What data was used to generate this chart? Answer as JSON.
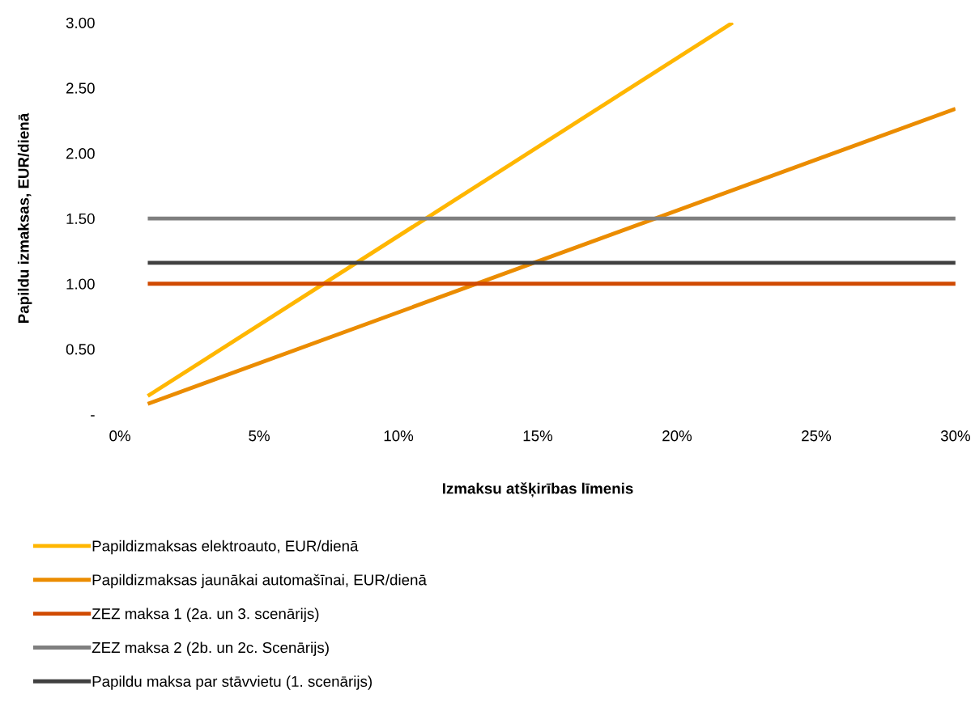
{
  "chart_data": {
    "type": "line",
    "xlabel": "Izmaksu atšķirības līmenis",
    "ylabel": "Papildu izmaksas, EUR/dienā",
    "xlim": [
      0,
      30
    ],
    "xticks": [
      {
        "value": 0,
        "label": "0%"
      },
      {
        "value": 5,
        "label": "5%"
      },
      {
        "value": 10,
        "label": "10%"
      },
      {
        "value": 15,
        "label": "15%"
      },
      {
        "value": 20,
        "label": "20%"
      },
      {
        "value": 25,
        "label": "25%"
      },
      {
        "value": 30,
        "label": "30%"
      }
    ],
    "ylim": [
      0,
      3
    ],
    "yticks": [
      {
        "value": 0,
        "label": "-"
      },
      {
        "value": 0.5,
        "label": "0.50"
      },
      {
        "value": 1,
        "label": "1.00"
      },
      {
        "value": 1.5,
        "label": "1.50"
      },
      {
        "value": 2,
        "label": "2.00"
      },
      {
        "value": 2.5,
        "label": "2.50"
      },
      {
        "value": 3,
        "label": "3.00"
      }
    ],
    "grid": false,
    "legend": "bottom",
    "marker": "none",
    "line_style": "solid",
    "series": [
      {
        "name": "Papildizmaksas elektroauto, EUR/dienā",
        "color": "#ffb600",
        "x": [
          1,
          22
        ],
        "values": [
          0.14,
          3.0
        ]
      },
      {
        "name": "Papildizmaksas jaunākai automašīnai, EUR/dienā",
        "color": "#eb8c00",
        "x": [
          1,
          30
        ],
        "values": [
          0.08,
          2.34
        ]
      },
      {
        "name": "ZEZ maksa 1 (2a. un 3. scenārijs)",
        "color": "#d04a02",
        "x": [
          1,
          30
        ],
        "values": [
          1.0,
          1.0
        ]
      },
      {
        "name": "ZEZ maksa 2 (2b. un 2c. Scenārijs)",
        "color": "#7f7f7f",
        "x": [
          1,
          30
        ],
        "values": [
          1.5,
          1.5
        ]
      },
      {
        "name": "Papildu maksa par stāvvietu (1. scenārijs)",
        "color": "#404040",
        "x": [
          1,
          30
        ],
        "values": [
          1.16,
          1.16
        ]
      }
    ]
  }
}
